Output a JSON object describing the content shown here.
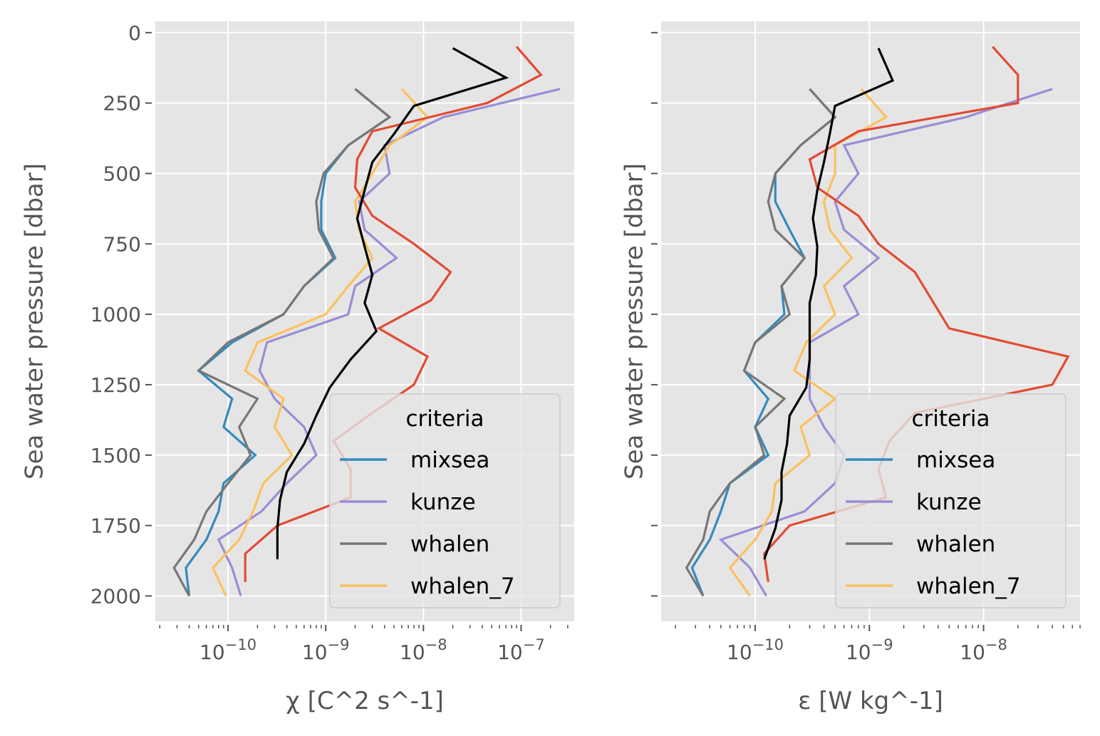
{
  "chart_data": [
    {
      "type": "line",
      "xscale": "log",
      "xlim": [
        1.8e-11,
        3.5e-07
      ],
      "ylim": [
        2090,
        -40
      ],
      "y_inverted": true,
      "xlabel": "χ [C^2 s^-1]",
      "ylabel": "Sea water pressure [dbar]",
      "yticks": [
        0,
        250,
        500,
        750,
        1000,
        1250,
        1500,
        1750,
        2000
      ],
      "ytick_labels": [
        "0",
        "250",
        "500",
        "750",
        "1000",
        "1250",
        "1500",
        "1750",
        "2000"
      ],
      "xticks": [
        1e-10,
        1e-09,
        1e-08,
        1e-07
      ],
      "xtick_labels": [
        {
          "base": "10",
          "exp": "−10"
        },
        {
          "base": "10",
          "exp": "−9"
        },
        {
          "base": "10",
          "exp": "−8"
        },
        {
          "base": "10",
          "exp": "−7"
        }
      ],
      "grid": true,
      "legend": {
        "title": "criteria",
        "placement": "lower-right",
        "entries": [
          "mixsea",
          "kunze",
          "whalen",
          "whalen_7"
        ]
      },
      "series": [
        {
          "name": "mixsea",
          "color": "#348ABD",
          "points": [
            [
              2e-09,
              200
            ],
            [
              4.5e-09,
              300
            ],
            [
              1.7e-09,
              400
            ],
            [
              1e-09,
              500
            ],
            [
              9e-10,
              600
            ],
            [
              9e-10,
              700
            ],
            [
              1.25e-09,
              800
            ],
            [
              6e-10,
              900
            ],
            [
              3.7e-10,
              1000
            ],
            [
              1.1e-10,
              1100
            ],
            [
              5e-11,
              1200
            ],
            [
              1.1e-10,
              1300
            ],
            [
              9e-11,
              1400
            ],
            [
              1.9e-10,
              1500
            ],
            [
              9e-11,
              1600
            ],
            [
              8e-11,
              1700
            ],
            [
              6e-11,
              1800
            ],
            [
              3.7e-11,
              1900
            ],
            [
              4e-11,
              2000
            ]
          ]
        },
        {
          "name": "kunze",
          "color": "#988ED5",
          "points": [
            [
              2.5e-07,
              200
            ],
            [
              1.6e-08,
              300
            ],
            [
              4e-09,
              400
            ],
            [
              4.5e-09,
              500
            ],
            [
              2.2e-09,
              600
            ],
            [
              2.5e-09,
              700
            ],
            [
              5.3e-09,
              800
            ],
            [
              2e-09,
              900
            ],
            [
              1.7e-09,
              1000
            ],
            [
              2.5e-10,
              1100
            ],
            [
              2.1e-10,
              1200
            ],
            [
              3e-10,
              1300
            ],
            [
              6e-10,
              1400
            ],
            [
              8e-10,
              1500
            ],
            [
              4e-10,
              1600
            ],
            [
              2.2e-10,
              1700
            ],
            [
              8e-11,
              1800
            ],
            [
              1.1e-10,
              1900
            ],
            [
              1.35e-10,
              2000
            ]
          ]
        },
        {
          "name": "whalen",
          "color": "#777777",
          "points": [
            [
              2e-09,
              200
            ],
            [
              4.5e-09,
              300
            ],
            [
              1.7e-09,
              400
            ],
            [
              9.5e-10,
              500
            ],
            [
              8e-10,
              600
            ],
            [
              8.5e-10,
              700
            ],
            [
              1.2e-09,
              800
            ],
            [
              6e-10,
              900
            ],
            [
              3.7e-10,
              1000
            ],
            [
              1e-10,
              1100
            ],
            [
              5e-11,
              1200
            ],
            [
              2e-10,
              1300
            ],
            [
              1.3e-10,
              1400
            ],
            [
              1.7e-10,
              1500
            ],
            [
              1e-10,
              1600
            ],
            [
              6e-11,
              1700
            ],
            [
              4.5e-11,
              1800
            ],
            [
              2.8e-11,
              1900
            ],
            [
              4e-11,
              2000
            ]
          ]
        },
        {
          "name": "whalen_7",
          "color": "#FBC15E",
          "points": [
            [
              6e-09,
              200
            ],
            [
              1.1e-08,
              300
            ],
            [
              4.5e-09,
              400
            ],
            [
              3e-09,
              500
            ],
            [
              2e-09,
              600
            ],
            [
              2.2e-09,
              700
            ],
            [
              3e-09,
              800
            ],
            [
              1.7e-09,
              900
            ],
            [
              1e-09,
              1000
            ],
            [
              2e-10,
              1100
            ],
            [
              1.5e-10,
              1200
            ],
            [
              3.7e-10,
              1300
            ],
            [
              3e-10,
              1400
            ],
            [
              4.5e-10,
              1500
            ],
            [
              2.3e-10,
              1600
            ],
            [
              1.8e-10,
              1700
            ],
            [
              1.3e-10,
              1800
            ],
            [
              7e-11,
              1900
            ],
            [
              9.5e-11,
              2000
            ]
          ]
        },
        {
          "name": "",
          "color": "#E24A33",
          "points": [
            [
              9e-08,
              50
            ],
            [
              1.6e-07,
              150
            ],
            [
              4.5e-08,
              250
            ],
            [
              3e-09,
              350
            ],
            [
              2.1e-09,
              450
            ],
            [
              2e-09,
              550
            ],
            [
              3e-09,
              650
            ],
            [
              8e-09,
              750
            ],
            [
              1.9e-08,
              850
            ],
            [
              1.2e-08,
              950
            ],
            [
              3.5e-09,
              1050
            ],
            [
              1.1e-08,
              1150
            ],
            [
              8e-09,
              1250
            ],
            [
              3e-09,
              1350
            ],
            [
              1.2e-09,
              1450
            ],
            [
              1.8e-09,
              1550
            ],
            [
              1.8e-09,
              1650
            ],
            [
              3.2e-10,
              1750
            ],
            [
              1.5e-10,
              1850
            ],
            [
              1.5e-10,
              1950
            ]
          ]
        },
        {
          "name": "",
          "color": "#000000",
          "points": [
            [
              2e-08,
              55
            ],
            [
              7e-08,
              160
            ],
            [
              8e-09,
              260
            ],
            [
              5e-09,
              360
            ],
            [
              3e-09,
              460
            ],
            [
              2.5e-09,
              560
            ],
            [
              2.1e-09,
              660
            ],
            [
              2.5e-09,
              760
            ],
            [
              3e-09,
              860
            ],
            [
              2.5e-09,
              960
            ],
            [
              3.3e-09,
              1060
            ],
            [
              1.8e-09,
              1160
            ],
            [
              1.1e-09,
              1260
            ],
            [
              8e-10,
              1360
            ],
            [
              6e-10,
              1460
            ],
            [
              4e-10,
              1560
            ],
            [
              3.4e-10,
              1660
            ],
            [
              3.2e-10,
              1760
            ],
            [
              3.2e-10,
              1870
            ]
          ]
        }
      ]
    },
    {
      "type": "line",
      "xscale": "log",
      "xlim": [
        1.5e-11,
        7e-08
      ],
      "ylim": [
        2090,
        -40
      ],
      "y_inverted": true,
      "xlabel": "ε [W kg^-1]",
      "ylabel": "Sea water pressure [dbar]",
      "yticks": [
        0,
        250,
        500,
        750,
        1000,
        1250,
        1500,
        1750,
        2000
      ],
      "ytick_labels": [
        "",
        "",
        "",
        "",
        "",
        "",
        "",
        "",
        ""
      ],
      "xticks": [
        1e-10,
        1e-09,
        1e-08
      ],
      "xtick_labels": [
        {
          "base": "10",
          "exp": "−10"
        },
        {
          "base": "10",
          "exp": "−9"
        },
        {
          "base": "10",
          "exp": "−8"
        }
      ],
      "grid": true,
      "legend": {
        "title": "criteria",
        "placement": "lower-right",
        "entries": [
          "mixsea",
          "kunze",
          "whalen",
          "whalen_7"
        ]
      },
      "series": [
        {
          "name": "mixsea",
          "color": "#348ABD",
          "points": [
            [
              3e-10,
              200
            ],
            [
              5e-10,
              300
            ],
            [
              2.5e-10,
              400
            ],
            [
              1.5e-10,
              500
            ],
            [
              1.5e-10,
              600
            ],
            [
              2e-10,
              700
            ],
            [
              2.7e-10,
              800
            ],
            [
              1.7e-10,
              900
            ],
            [
              1.8e-10,
              1000
            ],
            [
              1e-10,
              1100
            ],
            [
              8e-11,
              1200
            ],
            [
              1.3e-10,
              1300
            ],
            [
              1e-10,
              1400
            ],
            [
              1.3e-10,
              1500
            ],
            [
              6e-11,
              1600
            ],
            [
              5e-11,
              1700
            ],
            [
              4e-11,
              1800
            ],
            [
              2.8e-11,
              1900
            ],
            [
              3.5e-11,
              2000
            ]
          ]
        },
        {
          "name": "kunze",
          "color": "#988ED5",
          "points": [
            [
              4e-08,
              200
            ],
            [
              7e-09,
              300
            ],
            [
              6e-10,
              400
            ],
            [
              8e-10,
              500
            ],
            [
              5e-10,
              600
            ],
            [
              6e-10,
              700
            ],
            [
              1.2e-09,
              800
            ],
            [
              6e-10,
              900
            ],
            [
              8e-10,
              1000
            ],
            [
              3e-10,
              1100
            ],
            [
              3e-10,
              1200
            ],
            [
              3e-10,
              1300
            ],
            [
              4e-10,
              1400
            ],
            [
              6e-10,
              1500
            ],
            [
              5e-10,
              1600
            ],
            [
              2.7e-10,
              1700
            ],
            [
              5e-11,
              1800
            ],
            [
              9e-11,
              1900
            ],
            [
              1.25e-10,
              2000
            ]
          ]
        },
        {
          "name": "whalen",
          "color": "#777777",
          "points": [
            [
              3e-10,
              200
            ],
            [
              5e-10,
              300
            ],
            [
              2.5e-10,
              400
            ],
            [
              1.5e-10,
              500
            ],
            [
              1.3e-10,
              600
            ],
            [
              1.5e-10,
              700
            ],
            [
              2.7e-10,
              800
            ],
            [
              1.7e-10,
              900
            ],
            [
              2e-10,
              1000
            ],
            [
              1e-10,
              1100
            ],
            [
              8e-11,
              1200
            ],
            [
              1.8e-10,
              1300
            ],
            [
              1e-10,
              1400
            ],
            [
              1.2e-10,
              1500
            ],
            [
              6e-11,
              1600
            ],
            [
              4e-11,
              1700
            ],
            [
              3.5e-11,
              1800
            ],
            [
              2.5e-11,
              1900
            ],
            [
              3.5e-11,
              2000
            ]
          ]
        },
        {
          "name": "whalen_7",
          "color": "#FBC15E",
          "points": [
            [
              8.5e-10,
              200
            ],
            [
              1.4e-09,
              300
            ],
            [
              5e-10,
              400
            ],
            [
              5e-10,
              500
            ],
            [
              4e-10,
              600
            ],
            [
              4.5e-10,
              700
            ],
            [
              7e-10,
              800
            ],
            [
              4e-10,
              900
            ],
            [
              5e-10,
              1000
            ],
            [
              2.8e-10,
              1100
            ],
            [
              2.2e-10,
              1200
            ],
            [
              5e-10,
              1300
            ],
            [
              2.5e-10,
              1400
            ],
            [
              3e-10,
              1500
            ],
            [
              1.5e-10,
              1600
            ],
            [
              1.4e-10,
              1700
            ],
            [
              1e-10,
              1800
            ],
            [
              6e-11,
              1900
            ],
            [
              9e-11,
              2000
            ]
          ]
        },
        {
          "name": "",
          "color": "#E24A33",
          "points": [
            [
              1.2e-08,
              50
            ],
            [
              2e-08,
              150
            ],
            [
              2e-08,
              250
            ],
            [
              8e-10,
              350
            ],
            [
              3e-10,
              450
            ],
            [
              3.5e-10,
              550
            ],
            [
              8e-10,
              650
            ],
            [
              1.2e-09,
              750
            ],
            [
              2.5e-09,
              850
            ],
            [
              5e-09,
              1050
            ],
            [
              5.5e-08,
              1150
            ],
            [
              4e-08,
              1250
            ],
            [
              2.5e-09,
              1350
            ],
            [
              1.5e-09,
              1450
            ],
            [
              1.2e-09,
              1550
            ],
            [
              1.4e-09,
              1650
            ],
            [
              2e-10,
              1750
            ],
            [
              1.2e-10,
              1850
            ],
            [
              1.3e-10,
              1950
            ]
          ]
        },
        {
          "name": "",
          "color": "#000000",
          "points": [
            [
              1.2e-09,
              55
            ],
            [
              1.6e-09,
              170
            ],
            [
              5e-10,
              260
            ],
            [
              4.5e-10,
              360
            ],
            [
              4e-10,
              460
            ],
            [
              3.5e-10,
              560
            ],
            [
              3.2e-10,
              660
            ],
            [
              3.5e-10,
              760
            ],
            [
              3.4e-10,
              860
            ],
            [
              3e-10,
              960
            ],
            [
              3e-10,
              1060
            ],
            [
              3e-10,
              1160
            ],
            [
              2.8e-10,
              1260
            ],
            [
              2e-10,
              1360
            ],
            [
              1.9e-10,
              1460
            ],
            [
              1.7e-10,
              1560
            ],
            [
              1.7e-10,
              1660
            ],
            [
              1.5e-10,
              1760
            ],
            [
              1.2e-10,
              1870
            ]
          ]
        }
      ]
    }
  ]
}
